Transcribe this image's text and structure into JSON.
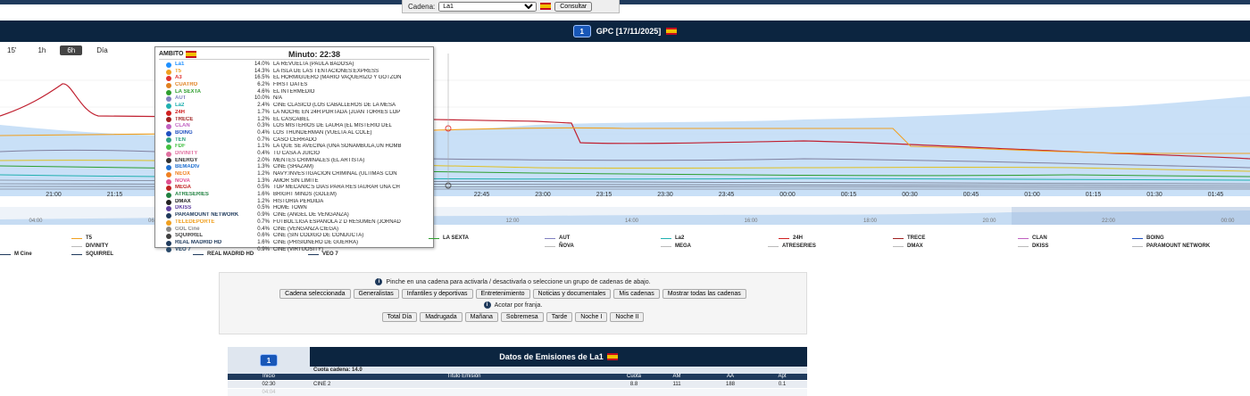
{
  "selector": {
    "label": "Cadena:",
    "value": "La1",
    "button": "Consultar"
  },
  "header": {
    "logo": "1",
    "title": "GPC [17/11/2025]"
  },
  "ranges": [
    {
      "label": "15'",
      "active": false
    },
    {
      "label": "1h",
      "active": false
    },
    {
      "label": "6h",
      "active": true
    },
    {
      "label": "Día",
      "active": false
    }
  ],
  "chart_data": {
    "type": "line",
    "x_labels_main": [
      "21:00",
      "21:15",
      "21:30",
      "21:45",
      "22:00",
      "22:15",
      "22:30",
      "22:45",
      "23:00",
      "23:15",
      "23:30",
      "23:45",
      "00:00",
      "00:15",
      "00:30",
      "00:45",
      "01:00",
      "01:15",
      "01:30",
      "01:45"
    ],
    "x_labels_nav": [
      "04:00",
      "06:00",
      "08:00",
      "10:00",
      "12:00",
      "14:00",
      "16:00",
      "18:00",
      "20:00",
      "22:00",
      "00:00"
    ],
    "series": [
      {
        "name": "LA1",
        "color": "#1e90ff"
      },
      {
        "name": "T5",
        "color": "#f0a020"
      },
      {
        "name": "A3",
        "color": "#e03030"
      },
      {
        "name": "CUATRO",
        "color": "#e08020"
      },
      {
        "name": "LA SEXTA",
        "color": "#2e9e2e"
      },
      {
        "name": "AUT",
        "color": "#8080c0"
      },
      {
        "name": "La2",
        "color": "#20b0b0"
      },
      {
        "name": "24H",
        "color": "#d02020"
      },
      {
        "name": "TRECE",
        "color": "#a02020"
      },
      {
        "name": "CLAN",
        "color": "#c060c0"
      },
      {
        "name": "BOING",
        "color": "#2050c0"
      },
      {
        "name": "TEN",
        "color": "#30a080"
      },
      {
        "name": "FDF",
        "color": "#40c040"
      }
    ]
  },
  "tooltip": {
    "ambito": "AMBITO",
    "minuto": "Minuto: 22:38",
    "rows": [
      {
        "name": "La1",
        "color": "#1e90ff",
        "pct": "14.0%",
        "prog": "LA REVUELTA (PAULA BADOSA)"
      },
      {
        "name": "T5",
        "color": "#f0a020",
        "pct": "14.3%",
        "prog": "LA ISLA DE LAS TENTACIONES:EXPRESS"
      },
      {
        "name": "A3",
        "color": "#e03030",
        "pct": "16.5%",
        "prog": "EL HORMIGUERO (MARIO VAQUERIZO Y GOTZON"
      },
      {
        "name": "CUATRO",
        "color": "#e08020",
        "pct": "6.2%",
        "prog": "FIRST DATES"
      },
      {
        "name": "LA SEXTA",
        "color": "#2e9e2e",
        "pct": "4.6%",
        "prog": "EL INTERMEDIO"
      },
      {
        "name": "AUT",
        "color": "#8080c0",
        "pct": "10.0%",
        "prog": "N/A"
      },
      {
        "name": "La2",
        "color": "#20b0b0",
        "pct": "2.4%",
        "prog": "CINE CLASICO (LOS CABALLEROS DE LA MESA"
      },
      {
        "name": "24H",
        "color": "#d02020",
        "pct": "1.7%",
        "prog": "LA NOCHE EN 24H:PORTADA (JUAN TORRES LOP"
      },
      {
        "name": "TRECE",
        "color": "#a02020",
        "pct": "1.2%",
        "prog": "EL CASCABEL"
      },
      {
        "name": "CLAN",
        "color": "#c060c0",
        "pct": "0.3%",
        "prog": "LOS MISTERIOS DE LAURA (EL MISTERIO DEL"
      },
      {
        "name": "BOING",
        "color": "#2050c0",
        "pct": "0.4%",
        "prog": "LOS THUNDERMAN (VUELTA AL COLE)"
      },
      {
        "name": "TEN",
        "color": "#30a080",
        "pct": "0.7%",
        "prog": "CASO CERRADO"
      },
      {
        "name": "FDF",
        "color": "#40c040",
        "pct": "1.1%",
        "prog": "LA QUE SE AVECINA (UNA SONAMBULA,UN HOMB"
      },
      {
        "name": "DIVINITY",
        "color": "#e070a0",
        "pct": "0.4%",
        "prog": "TU CASA A JUICIO"
      },
      {
        "name": "ENERGY",
        "color": "#303030",
        "pct": "2.0%",
        "prog": "MENTES CRIMINALES (EL ARTISTA)"
      },
      {
        "name": "BEMADtv",
        "color": "#2070d0",
        "pct": "1.3%",
        "prog": "CINE (SHAZAM)"
      },
      {
        "name": "NEOX",
        "color": "#f08020",
        "pct": "1.2%",
        "prog": "NAVY:INVESTIGACION CRIMINAL (ULTIMAS CON"
      },
      {
        "name": "NOVA",
        "color": "#e05090",
        "pct": "1.3%",
        "prog": "AMOR SIN LIMITE"
      },
      {
        "name": "MEGA",
        "color": "#c02020",
        "pct": "0.5%",
        "prog": "TOP MECANIC:5 DIAS PARA RESTAURAR UNA CH"
      },
      {
        "name": "ATRESERIES",
        "color": "#208040",
        "pct": "1.6%",
        "prog": "BRIGHT MINDS (GOLEM)"
      },
      {
        "name": "DMAX",
        "color": "#202020",
        "pct": "1.2%",
        "prog": "HISTORIA PERDIDA"
      },
      {
        "name": "DKISS",
        "color": "#6040a0",
        "pct": "0.5%",
        "prog": "HOME TOWN"
      },
      {
        "name": "PARAMOUNT NETWORK",
        "color": "#1f3a5c",
        "pct": "0.9%",
        "prog": "CINE (ANGEL DE VENGANZA)"
      },
      {
        "name": "TELEDEPORTE",
        "color": "#f0a020",
        "pct": "0.7%",
        "prog": "FUTBOL:LIGA ESPAÑOLA 2 D RESUMEN (JORNAD"
      },
      {
        "name": "GOL Cine",
        "color": "#888888",
        "pct": "0.4%",
        "prog": "CINE (VENGANZA CIEGA)"
      },
      {
        "name": "SQUIRREL",
        "color": "#404040",
        "pct": "0.6%",
        "prog": "CINE (SIN CODIGO DE CONDUCTA)"
      },
      {
        "name": "REAL MADRID HD",
        "color": "#1f3a5c",
        "pct": "1.6%",
        "prog": "CINE (PRISIONERO DE GUERRA)"
      },
      {
        "name": "VEO 7",
        "color": "#2a4a6a",
        "pct": "0.9%",
        "prog": "CINE (VIRTUOSITY)"
      }
    ]
  },
  "legend": {
    "row1": [
      "T5",
      "LA SEXTA",
      "AUT",
      "La2",
      "24H",
      "TRECE",
      "CLAN",
      "BOING"
    ],
    "row1_right": [
      "DIVINITY",
      "ÑOVA",
      "MEGA",
      "ATRESERIES",
      "DMAX",
      "DKISS",
      "PARAMOUNT NETWORK"
    ],
    "row2": [
      "M Cine",
      "SQUIRREL",
      "REAL MADRID HD",
      "VEO 7"
    ]
  },
  "filters": {
    "info": "Pinche en una cadena para activarla / desactivarla o seleccione un grupo de cadenas de abajo.",
    "groups": [
      "Cadena seleccionada",
      "Generalistas",
      "Infantiles y deportivas",
      "Entretenimiento",
      "Noticias y documentales",
      "Mis cadenas",
      "Mostrar todas las cadenas"
    ],
    "acotar": "Acotar por franja.",
    "franjas": [
      "Total Día",
      "Madrugada",
      "Mañana",
      "Sobremesa",
      "Tarde",
      "Noche I",
      "Noche II"
    ]
  },
  "emisiones": {
    "title": "Datos de Emisiones de La1",
    "cuota": "Cuota cadena:  14.0",
    "headers": [
      "Inicio",
      "Título Emisión",
      "Cuota",
      "AM",
      "AA",
      "Apt"
    ],
    "rows": [
      {
        "inicio": "02:30",
        "titulo": "CINE 2",
        "cuota": "8.8",
        "am": "111",
        "aa": "188",
        "apt": "0.1"
      },
      {
        "inicio": "04:04",
        "titulo": "",
        "cuota": "",
        "am": "",
        "aa": "",
        "apt": ""
      }
    ]
  }
}
